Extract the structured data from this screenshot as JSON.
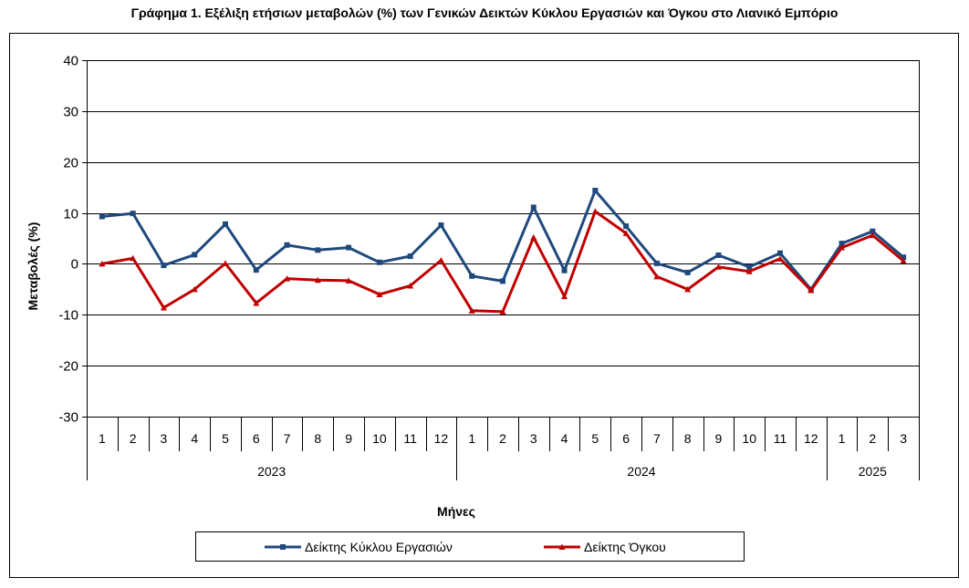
{
  "chart_data": {
    "type": "line",
    "title": "Γράφημα 1. Εξέλιξη ετήσιων μεταβολών (%) των Γενικών Δεικτών Κύκλου Εργασιών και Όγκου στο Λιανικό Εμπόριο",
    "xlabel": "Μήνες",
    "ylabel": "Μεταβολές  (%)",
    "ylim": [
      -30,
      40
    ],
    "yticks": [
      40,
      30,
      20,
      10,
      0,
      -10,
      -20,
      -30
    ],
    "grid": true,
    "legend_position": "bottom",
    "categories": [
      "1",
      "2",
      "3",
      "4",
      "5",
      "6",
      "7",
      "8",
      "9",
      "10",
      "11",
      "12",
      "1",
      "2",
      "3",
      "4",
      "5",
      "6",
      "7",
      "8",
      "9",
      "10",
      "11",
      "12",
      "1",
      "2",
      "3"
    ],
    "year_groups": [
      {
        "label": "2023",
        "count": 12
      },
      {
        "label": "2024",
        "count": 12
      },
      {
        "label": "2025",
        "count": 3
      }
    ],
    "series": [
      {
        "name": "Δείκτης Κύκλου Εργασιών",
        "color": "#1f497d",
        "marker": "square",
        "values": [
          9.3,
          9.9,
          -0.3,
          1.8,
          7.8,
          -1.2,
          3.7,
          2.7,
          3.2,
          0.3,
          1.5,
          7.6,
          -2.4,
          -3.4,
          11.1,
          -1.3,
          14.4,
          7.4,
          0.1,
          -1.7,
          1.7,
          -0.6,
          2.1,
          -5.0,
          4.0,
          6.4,
          1.3
        ]
      },
      {
        "name": "Δείκτης Όγκου",
        "color": "#c00000",
        "marker": "triangle",
        "values": [
          0.0,
          1.1,
          -8.6,
          -5.0,
          0.1,
          -7.7,
          -2.9,
          -3.2,
          -3.3,
          -6.0,
          -4.3,
          0.7,
          -9.2,
          -9.4,
          5.2,
          -6.4,
          10.3,
          6.0,
          -2.5,
          -5.0,
          -0.6,
          -1.5,
          1.0,
          -5.2,
          3.2,
          5.6,
          0.6
        ]
      }
    ]
  }
}
